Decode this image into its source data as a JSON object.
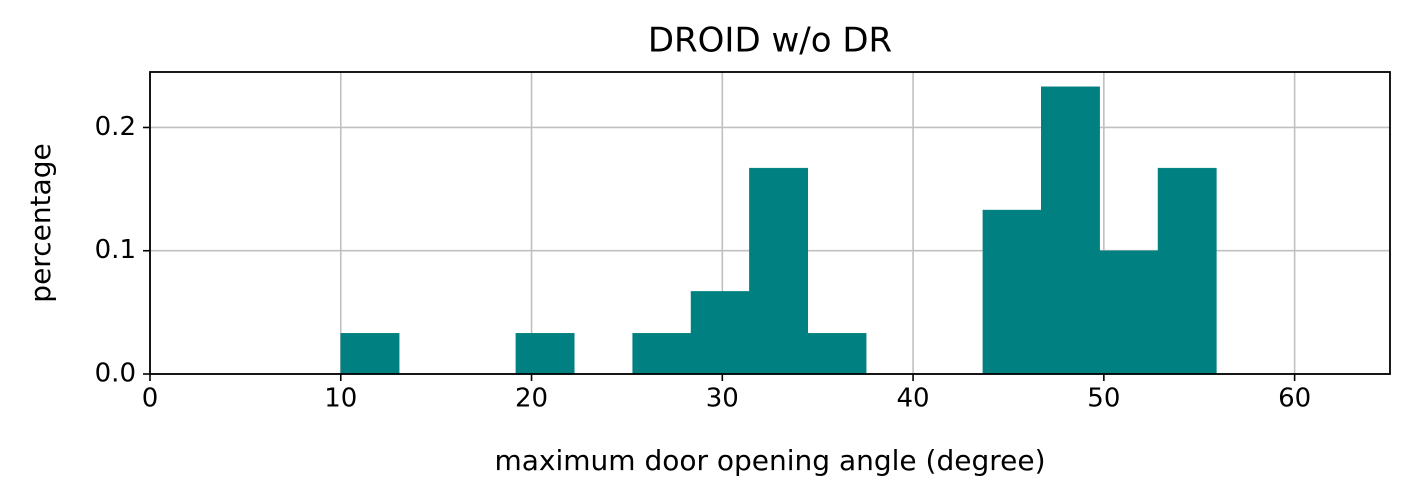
{
  "chart_data": {
    "type": "histogram",
    "title": "DROID w/o DR",
    "x_label": "maximum door opening angle (degree)",
    "y_label": "percentage",
    "bins": [
      10,
      13.06,
      16.12,
      19.18,
      22.24,
      25.3,
      28.36,
      31.42,
      34.48,
      37.54,
      40.6,
      43.66,
      46.72,
      49.78,
      52.84,
      55.9
    ],
    "values": [
      0.033,
      0,
      0,
      0.033,
      0,
      0.033,
      0.067,
      0.167,
      0.033,
      0,
      0,
      0.133,
      0.233,
      0.1,
      0.167
    ],
    "color": "#008080",
    "xlim": [
      0,
      65
    ],
    "xticks": [
      0,
      10,
      20,
      30,
      40,
      50,
      60
    ],
    "ylim": [
      0,
      0.245
    ],
    "yticks": [
      {
        "value": 0,
        "label": "0.0"
      },
      0.1,
      0.2
    ],
    "grid": true
  }
}
